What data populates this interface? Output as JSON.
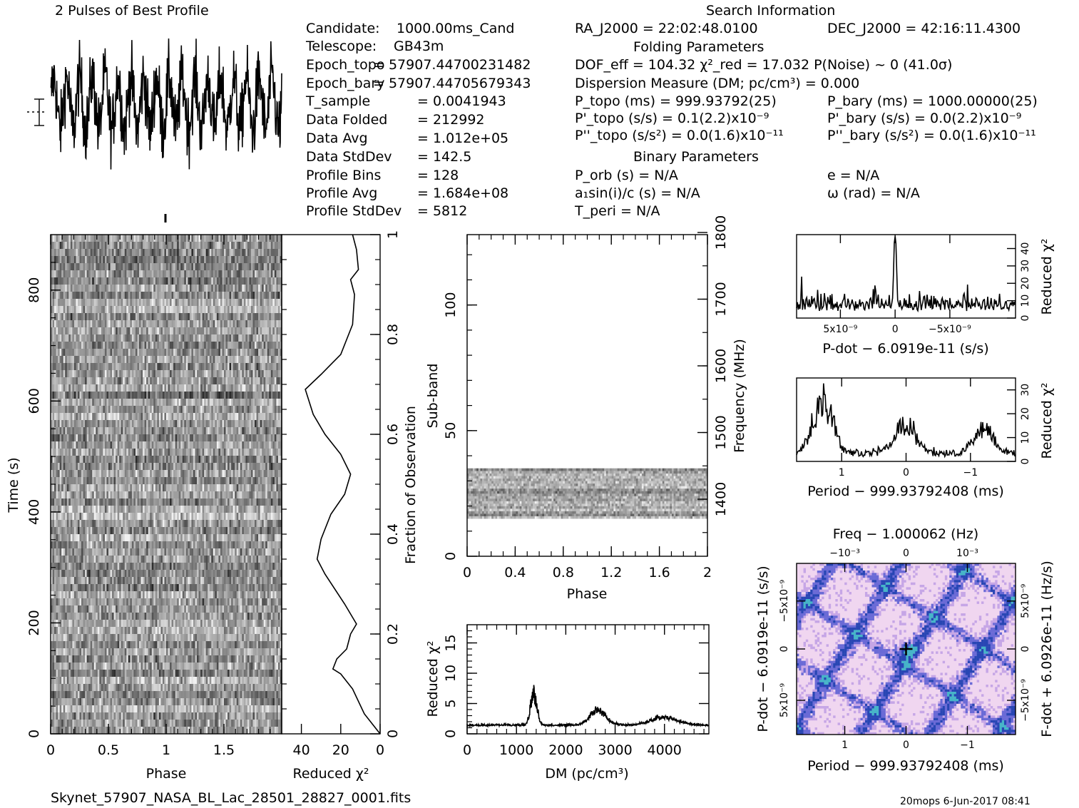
{
  "page": {
    "header_title": "2 Pulses of Best Profile",
    "search_title": "Search Information",
    "folding_title": "Folding Parameters",
    "binary_title": "Binary Parameters",
    "filename": "Skynet_57907_NASA_BL_Lac_28501_28827_0001.fits",
    "footer_right": "20mops  6-Jun-2017 08:41"
  },
  "candidate_info": [
    {
      "label": "Candidate:",
      "value": "1000.00ms_Cand"
    },
    {
      "label": "Telescope:",
      "value": "GB43m"
    },
    {
      "label": "Epoch_topo",
      "value": "= 57907.44700231482"
    },
    {
      "label": "Epoch_bary",
      "value": "= 57907.44705679343"
    },
    {
      "label": "T_sample",
      "value": "=  0.0041943"
    },
    {
      "label": "Data Folded",
      "value": "=  212992"
    },
    {
      "label": "Data Avg",
      "value": "=  1.012e+05"
    },
    {
      "label": "Data StdDev",
      "value": "=  142.5"
    },
    {
      "label": "Profile Bins",
      "value": "=  128"
    },
    {
      "label": "Profile Avg",
      "value": "=  1.684e+08"
    },
    {
      "label": "Profile StdDev",
      "value": "=  5812"
    }
  ],
  "search_info": {
    "ra": "RA_J2000 = 22:02:48.0100",
    "dec": "DEC_J2000 = 42:16:11.4300",
    "dof_line": "DOF_eff = 104.32   χ²_red = 17.032   P(Noise) ~ 0    (41.0σ)",
    "dm_line": "Dispersion Measure (DM; pc/cm³) = 0.000",
    "p_topo": "P_topo (ms) =  999.93792(25)",
    "p_bary": "P_bary (ms) =  1000.00000(25)",
    "pd_topo": "P'_topo (s/s) =  0.1(2.2)x10⁻⁹",
    "pd_bary": "P'_bary (s/s) = 0.0(2.2)x10⁻⁹",
    "pdd_topo": "P''_topo (s/s²) = 0.0(1.6)x10⁻¹¹",
    "pdd_bary": "P''_bary (s/s²) = 0.0(1.6)x10⁻¹¹",
    "p_orb": "P_orb (s) = N/A",
    "e": "e = N/A",
    "a1sini": "a₁sin(i)/c (s) = N/A",
    "omega": "ω (rad) = N/A",
    "t_peri": "T_peri = N/A"
  },
  "chart_data": [
    {
      "id": "time-phase",
      "type": "heatmap",
      "xlabel": "Phase",
      "ylabel": "Time (s)",
      "xlim": [
        0,
        2
      ],
      "ylim": [
        0,
        900
      ],
      "x_ticks": [
        "0",
        "0.5",
        "1",
        "1.5"
      ],
      "y_ticks": [
        "0",
        "200",
        "400",
        "600",
        "800"
      ],
      "colormap": "grayscale"
    },
    {
      "id": "time-chi2",
      "type": "line",
      "xlabel": "Reduced χ²",
      "ylabel": "Fraction of Observation",
      "xlim": [
        50,
        0
      ],
      "ylim": [
        0,
        1
      ],
      "x_ticks": [
        "40",
        "20",
        "0"
      ],
      "y_ticks": [
        "0",
        "0.2",
        "0.4",
        "0.6",
        "0.8",
        "1"
      ],
      "points": [
        [
          0,
          0
        ],
        [
          8,
          0.04
        ],
        [
          14,
          0.09
        ],
        [
          20,
          0.12
        ],
        [
          24,
          0.13
        ],
        [
          22,
          0.15
        ],
        [
          17,
          0.17
        ],
        [
          15,
          0.2
        ],
        [
          12,
          0.22
        ],
        [
          18,
          0.26
        ],
        [
          28,
          0.32
        ],
        [
          32,
          0.35
        ],
        [
          30,
          0.39
        ],
        [
          25,
          0.44
        ],
        [
          18,
          0.48
        ],
        [
          15,
          0.52
        ],
        [
          20,
          0.56
        ],
        [
          28,
          0.6
        ],
        [
          34,
          0.64
        ],
        [
          38,
          0.69
        ],
        [
          30,
          0.72
        ],
        [
          20,
          0.76
        ],
        [
          14,
          0.82
        ],
        [
          13,
          0.88
        ],
        [
          15,
          0.91
        ],
        [
          11,
          0.93
        ],
        [
          12,
          0.97
        ],
        [
          14,
          1.0
        ]
      ]
    },
    {
      "id": "subband-phase",
      "type": "heatmap",
      "xlabel": "Phase",
      "ylabel": "Sub-band",
      "y2label": "Frequency (MHz)",
      "xlim": [
        0,
        2
      ],
      "ylim": [
        0,
        128
      ],
      "x_ticks": [
        "0",
        "0.4",
        "0.8",
        "1.2",
        "1.6",
        "2"
      ],
      "y_ticks": [
        "0",
        "50",
        "100"
      ],
      "y2_ticks": [
        "1400",
        "1500",
        "1600",
        "1700",
        "1800"
      ],
      "band_range": [
        15,
        35
      ],
      "colormap": "grayscale"
    },
    {
      "id": "dm-chi2",
      "type": "line",
      "xlabel": "DM (pc/cm³)",
      "ylabel": "Reduced χ²",
      "xlim": [
        0,
        4900
      ],
      "ylim": [
        0,
        18
      ],
      "x_ticks": [
        "0",
        "1000",
        "2000",
        "3000",
        "4000"
      ],
      "y_ticks": [
        "0",
        "5",
        "10",
        "15"
      ],
      "peaks": [
        {
          "x": 1350,
          "y": 8.0,
          "w": 90
        },
        {
          "x": 2650,
          "y": 4.5,
          "w": 220
        },
        {
          "x": 4000,
          "y": 3.0,
          "w": 380
        }
      ],
      "baseline": 1.3
    },
    {
      "id": "pdot-chi2",
      "type": "line",
      "xlabel": "P-dot − 6.0919e-11 (s/s)",
      "ylabel": "Reduced χ²",
      "xlim": [
        9e-09,
        -1.1e-08
      ],
      "ylim": [
        0,
        48
      ],
      "x_ticks": [
        "5x10⁻⁹",
        "0",
        "−5x10⁻⁹"
      ],
      "y_ticks": [
        "0",
        "10",
        "20",
        "30",
        "40"
      ],
      "peak": {
        "x": 0,
        "y": 42
      }
    },
    {
      "id": "period-chi2",
      "type": "line",
      "xlabel": "Period − 999.93792408 (ms)",
      "ylabel": "Reduced χ²",
      "xlim": [
        1.7,
        -1.7
      ],
      "ylim": [
        0,
        35
      ],
      "x_ticks": [
        "1",
        "0",
        "−1"
      ],
      "y_ticks": [
        "0",
        "10",
        "20",
        "30"
      ],
      "peaks": [
        {
          "x": 1.3,
          "y": 29
        },
        {
          "x": 0.0,
          "y": 18
        },
        {
          "x": -1.2,
          "y": 14
        }
      ]
    },
    {
      "id": "period-pdot",
      "type": "heatmap",
      "title": "Freq − 1.000062 (Hz)",
      "xlabel": "Period − 999.93792408 (ms)",
      "ylabel": "P-dot − 6.0919e-11 (s/s)",
      "y2label": "F-dot + 6.0926e-11 (Hz/s)",
      "x_ticks": [
        "1",
        "0",
        "−1"
      ],
      "x2_ticks": [
        "−10⁻³",
        "0",
        "10⁻³"
      ],
      "y_ticks": [
        "−5x10⁻⁹",
        "0",
        "5x10⁻⁹"
      ],
      "y2_ticks": [
        "5x10⁻⁹",
        "0",
        "−5x10⁻⁹"
      ],
      "best": [
        0,
        0
      ],
      "colors": [
        "#f0d6f0",
        "#c6a6e6",
        "#6a6ad6",
        "#2846b4",
        "#46b4c8"
      ]
    }
  ]
}
